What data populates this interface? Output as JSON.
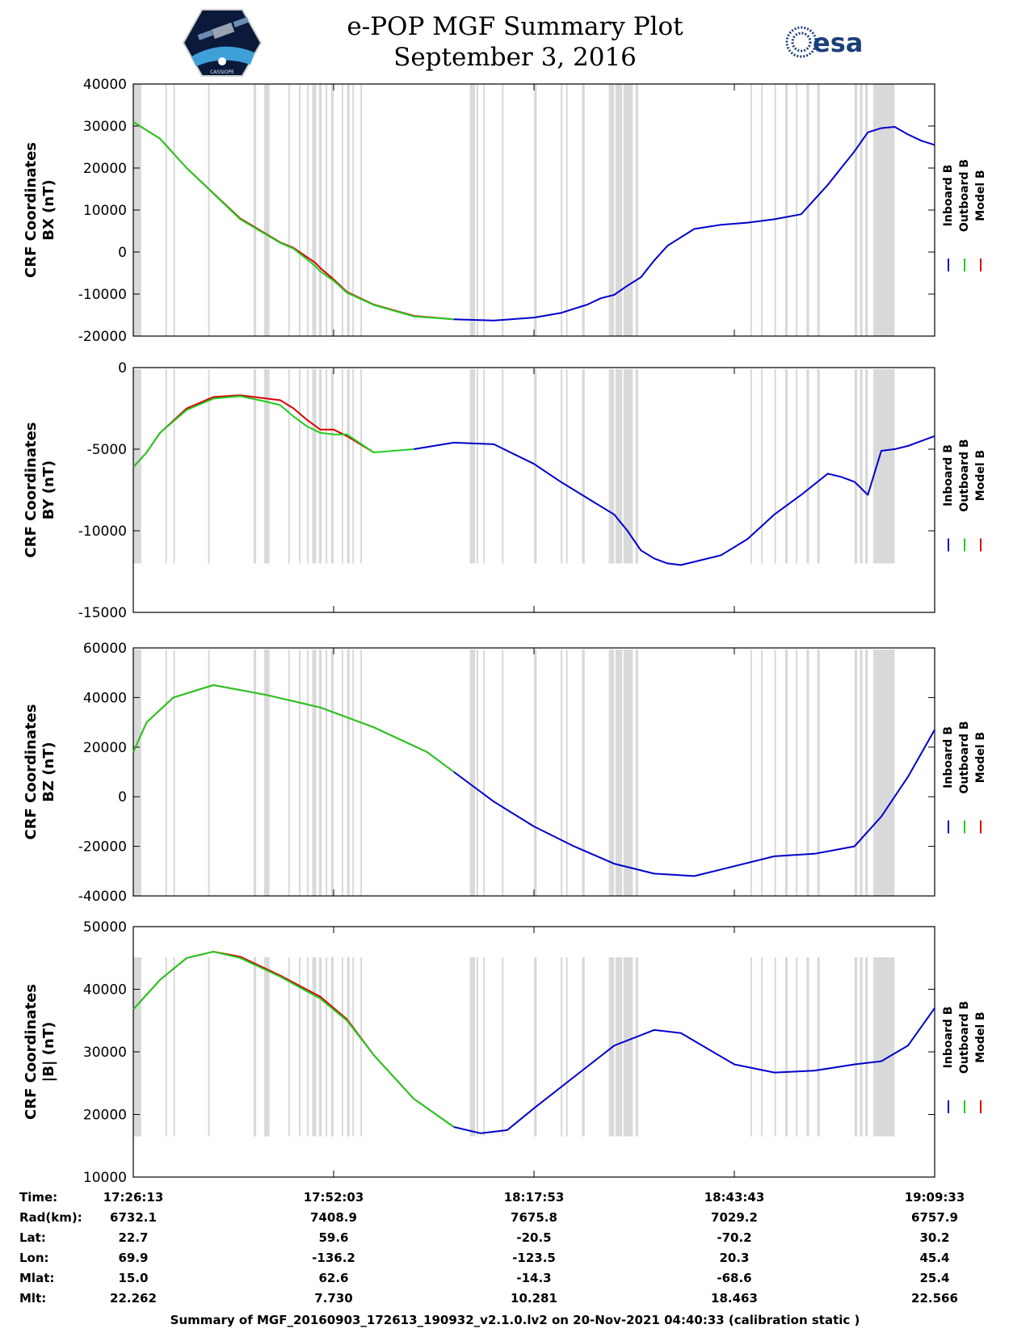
{
  "header": {
    "title": "e-POP MGF Summary Plot",
    "date": "September 3, 2016",
    "esa_logo_text": "esa",
    "cassiope_logo_text": "CASSIOPE"
  },
  "colors": {
    "inboard": "#0000cc",
    "outboard": "#22cc22",
    "model": "#dd0000",
    "gap_shade": "#d9d9d9"
  },
  "legend": [
    "Inboard B",
    "Outboard B",
    "Model B"
  ],
  "chart_data": [
    {
      "type": "line",
      "title": "",
      "ylabel": [
        "CRF Coordinates",
        "BX (nT)"
      ],
      "ylim": [
        -20000,
        40000
      ],
      "yticks": [
        -20000,
        -10000,
        0,
        10000,
        20000,
        30000,
        40000
      ],
      "series": [
        {
          "name": "Model B",
          "t": [
            0,
            10,
            20,
            40,
            55,
            60,
            65,
            68,
            70,
            75,
            80,
            90,
            105,
            120
          ],
          "values": [
            31000,
            27000,
            20000,
            8000,
            2300,
            1000,
            -1200,
            -2500,
            -3800,
            -6500,
            -9500,
            -12500,
            -15200,
            -16000
          ]
        },
        {
          "name": "Outboard B",
          "t": [
            0,
            10,
            20,
            40,
            55,
            60,
            65,
            68,
            70,
            75,
            80,
            90,
            105,
            120
          ],
          "values": [
            31000,
            27000,
            20000,
            7800,
            2200,
            800,
            -1700,
            -3300,
            -4600,
            -6800,
            -9700,
            -12600,
            -15300,
            -16000
          ]
        },
        {
          "name": "Inboard B",
          "t": [
            120,
            135,
            150,
            160,
            170,
            175,
            180,
            185,
            190,
            195,
            200,
            210,
            220,
            230,
            240,
            250,
            260,
            270,
            275,
            280,
            285,
            290,
            295,
            300
          ],
          "values": [
            -16000,
            -16300,
            -15600,
            -14500,
            -12500,
            -11000,
            -10200,
            -8000,
            -6000,
            -2000,
            1500,
            5500,
            6500,
            7000,
            7800,
            9000,
            16000,
            24000,
            28500,
            29500,
            29800,
            28000,
            26500,
            25500
          ]
        }
      ]
    },
    {
      "type": "line",
      "title": "",
      "ylabel": [
        "CRF Coordinates",
        "BY (nT)"
      ],
      "ylim": [
        -15000,
        0
      ],
      "yticks": [
        -15000,
        -10000,
        -5000,
        0
      ],
      "series": [
        {
          "name": "Model B",
          "t": [
            0,
            5,
            10,
            20,
            30,
            40,
            50,
            55,
            60,
            65,
            70,
            75,
            80,
            90
          ],
          "values": [
            -6100,
            -5200,
            -4000,
            -2500,
            -1800,
            -1700,
            -1900,
            -2000,
            -2500,
            -3200,
            -3800,
            -3800,
            -4200,
            -5200
          ]
        },
        {
          "name": "Outboard B",
          "t": [
            0,
            5,
            10,
            20,
            30,
            40,
            50,
            55,
            60,
            65,
            70,
            75,
            80,
            90,
            105
          ],
          "values": [
            -6100,
            -5200,
            -4000,
            -2600,
            -1900,
            -1750,
            -2100,
            -2300,
            -3000,
            -3600,
            -4000,
            -4100,
            -4100,
            -5200,
            -5000
          ]
        },
        {
          "name": "Inboard B",
          "t": [
            105,
            120,
            135,
            150,
            160,
            170,
            180,
            185,
            190,
            195,
            200,
            205,
            210,
            220,
            230,
            240,
            250,
            260,
            265,
            270,
            275,
            280,
            285,
            290,
            300
          ],
          "values": [
            -5000,
            -4600,
            -4700,
            -5900,
            -7000,
            -8000,
            -9000,
            -10000,
            -11200,
            -11700,
            -12000,
            -12100,
            -11900,
            -11500,
            -10500,
            -9000,
            -7800,
            -6500,
            -6700,
            -7000,
            -7800,
            -5100,
            -5000,
            -4800,
            -4200
          ]
        }
      ]
    },
    {
      "type": "line",
      "title": "",
      "ylabel": [
        "CRF Coordinates",
        "BZ (nT)"
      ],
      "ylim": [
        -40000,
        60000
      ],
      "yticks": [
        -40000,
        -20000,
        0,
        20000,
        40000,
        60000
      ],
      "series": [
        {
          "name": "Model B",
          "t": [
            0,
            5,
            15,
            30,
            50,
            70,
            90,
            110,
            120
          ],
          "values": [
            18000,
            30000,
            40000,
            45000,
            41000,
            36000,
            28000,
            18000,
            10000
          ]
        },
        {
          "name": "Outboard B",
          "t": [
            0,
            5,
            15,
            30,
            50,
            70,
            90,
            110,
            120
          ],
          "values": [
            18000,
            30000,
            40000,
            45000,
            41000,
            36000,
            28000,
            18000,
            10000
          ]
        },
        {
          "name": "Inboard B",
          "t": [
            120,
            135,
            150,
            165,
            180,
            195,
            210,
            225,
            240,
            255,
            270,
            280,
            290,
            300
          ],
          "values": [
            10000,
            -2000,
            -12000,
            -20000,
            -27000,
            -31000,
            -32000,
            -28000,
            -24000,
            -23000,
            -20000,
            -8000,
            8000,
            27000
          ]
        }
      ]
    },
    {
      "type": "line",
      "title": "",
      "ylabel": [
        "CRF Coordinates",
        "|B| (nT)"
      ],
      "ylim": [
        10000,
        50000
      ],
      "yticks": [
        10000,
        20000,
        30000,
        40000,
        50000
      ],
      "series": [
        {
          "name": "Model B",
          "t": [
            0,
            10,
            20,
            30,
            40,
            55,
            70,
            80,
            90,
            105,
            120
          ],
          "values": [
            36800,
            41500,
            45000,
            46000,
            45200,
            42200,
            38800,
            35200,
            29500,
            22500,
            18000
          ]
        },
        {
          "name": "Outboard B",
          "t": [
            0,
            10,
            20,
            30,
            40,
            55,
            70,
            80,
            90,
            105,
            120
          ],
          "values": [
            36800,
            41500,
            45000,
            46000,
            45000,
            42000,
            38500,
            35000,
            29500,
            22500,
            18000
          ]
        },
        {
          "name": "Inboard B",
          "t": [
            120,
            130,
            140,
            150,
            165,
            180,
            195,
            205,
            215,
            225,
            240,
            255,
            270,
            280,
            290,
            300
          ],
          "values": [
            18000,
            17000,
            17500,
            21000,
            26000,
            31000,
            33500,
            33000,
            30500,
            28000,
            26700,
            27000,
            28000,
            28500,
            31000,
            37000
          ]
        }
      ]
    }
  ],
  "x_axis": {
    "t_range": [
      0,
      300
    ],
    "ticks": [
      0,
      75,
      150,
      225,
      300
    ],
    "rows": [
      {
        "label": "Time:",
        "values": [
          "17:26:13",
          "17:52:03",
          "18:17:53",
          "18:43:43",
          "19:09:33"
        ]
      },
      {
        "label": "Rad(km):",
        "values": [
          "6732.1",
          "7408.9",
          "7675.8",
          "7029.2",
          "6757.9"
        ]
      },
      {
        "label": "Lat:",
        "values": [
          "22.7",
          "59.6",
          "-20.5",
          "-70.2",
          "30.2"
        ]
      },
      {
        "label": "Lon:",
        "values": [
          "69.9",
          "-136.2",
          "-123.5",
          "20.3",
          "45.4"
        ]
      },
      {
        "label": "Mlat:",
        "values": [
          "15.0",
          "62.6",
          "-14.3",
          "-68.6",
          "25.4"
        ]
      },
      {
        "label": "Mlt:",
        "values": [
          "22.262",
          "7.730",
          "10.281",
          "18.463",
          "22.566"
        ]
      }
    ]
  },
  "footer": "Summary of MGF_20160903_172613_190932_v2.1.0.lv2 on 20-Nov-2021 04:40:33 (calibration static )"
}
